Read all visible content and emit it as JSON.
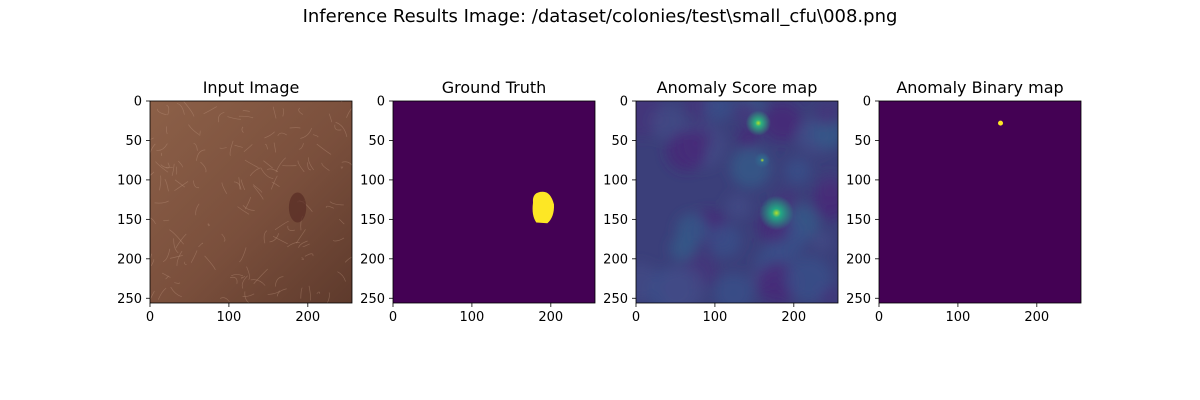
{
  "figure": {
    "suptitle": "Inference Results Image: /dataset/colonies/test\\small_cfu\\008.png"
  },
  "chart_data": {
    "type": "heatmap",
    "suptitle": "Inference Results Image: /dataset/colonies/test\\small_cfu\\008.png",
    "panels": [
      {
        "title": "Input Image",
        "kind": "photo",
        "description_colors": {
          "base": "#7a4f3c",
          "dark": "#5e3a2c",
          "light": "#8c6048"
        },
        "features": [
          {
            "shape": "ellipse",
            "cx": 187,
            "cy": 135,
            "rx": 11,
            "ry": 19,
            "color": "#5a2e26"
          }
        ],
        "xlim": [
          0,
          256
        ],
        "ylim": [
          256,
          0
        ],
        "xticks": [
          0,
          100,
          200
        ],
        "yticks": [
          0,
          50,
          100,
          150,
          200,
          250
        ],
        "grid": false
      },
      {
        "title": "Ground Truth",
        "kind": "mask",
        "background": "#440154",
        "features": [
          {
            "shape": "blob",
            "cx": 190,
            "cy": 135,
            "rx": 14,
            "ry": 20,
            "color": "#fde725"
          }
        ],
        "xlim": [
          0,
          256
        ],
        "ylim": [
          256,
          0
        ],
        "xticks": [
          0,
          100,
          200
        ],
        "yticks": [
          0,
          50,
          100,
          150,
          200,
          250
        ],
        "grid": false
      },
      {
        "title": "Anomaly Score map",
        "kind": "score",
        "background": "#3b3f7a",
        "features": [
          {
            "shape": "spot",
            "cx": 155,
            "cy": 28,
            "r": 16,
            "color": "#2bb07f"
          },
          {
            "shape": "spot",
            "cx": 178,
            "cy": 142,
            "r": 22,
            "color": "#22a884"
          },
          {
            "shape": "spot",
            "cx": 160,
            "cy": 75,
            "r": 10,
            "color": "#31688e"
          }
        ],
        "xlim": [
          0,
          256
        ],
        "ylim": [
          256,
          0
        ],
        "xticks": [
          0,
          100,
          200
        ],
        "yticks": [
          0,
          50,
          100,
          150,
          200,
          250
        ],
        "grid": false
      },
      {
        "title": "Anomaly Binary map",
        "kind": "binary",
        "background": "#440154",
        "features": [
          {
            "shape": "dot",
            "cx": 154,
            "cy": 28,
            "r": 2.5,
            "color": "#fde725"
          }
        ],
        "xlim": [
          0,
          256
        ],
        "ylim": [
          256,
          0
        ],
        "xticks": [
          0,
          100,
          200
        ],
        "yticks": [
          0,
          50,
          100,
          150,
          200,
          250
        ],
        "grid": false
      }
    ]
  }
}
